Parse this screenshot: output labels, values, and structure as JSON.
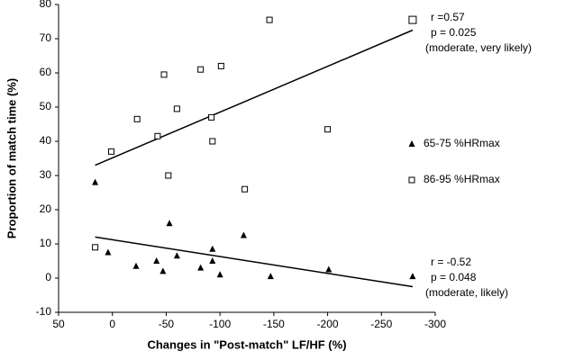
{
  "chart_data": {
    "type": "scatter",
    "xlabel": "Changes in \"Post-match\" LF/HF (%)",
    "ylabel": "Proportion of match time (%)",
    "xlim": [
      50,
      -300
    ],
    "xticks": [
      50,
      0,
      -50,
      -100,
      -150,
      -200,
      -250,
      -300
    ],
    "ylim": [
      -10,
      80
    ],
    "yticks": [
      -10,
      0,
      10,
      20,
      30,
      40,
      50,
      60,
      70,
      80
    ],
    "series": [
      {
        "name": "65-75  %HRmax",
        "marker": "triangle",
        "color": "#000000",
        "x": [
          16,
          4,
          -22,
          -41,
          -47,
          -53,
          -60,
          -82,
          -93,
          -93,
          -100,
          -122,
          -147,
          -201,
          -279
        ],
        "values": [
          28,
          7.5,
          3.5,
          5,
          2,
          16,
          6.5,
          3,
          8.5,
          5,
          1,
          12.5,
          0.5,
          2.5,
          0.5
        ],
        "trend_x": [
          16,
          -279
        ],
        "trend_y": [
          12,
          -2.5
        ],
        "annotation": [
          "r = -0.52",
          "p = 0.048",
          "(moderate, likely)"
        ]
      },
      {
        "name": "86-95  %HRmax",
        "marker": "square",
        "color": "#000000",
        "x": [
          16,
          1,
          -23,
          -42,
          -48,
          -52,
          -60,
          -82,
          -92,
          -93,
          -101,
          -123,
          -146,
          -200,
          -279
        ],
        "values": [
          9,
          37,
          46.5,
          41.5,
          59.5,
          30,
          49.5,
          61,
          47,
          40,
          62,
          26,
          75.5,
          43.5,
          75.5
        ],
        "trend_x": [
          16,
          -279
        ],
        "trend_y": [
          33,
          72.5
        ],
        "annotation": [
          "r =0.57",
          "p = 0.025",
          "(moderate, very likely)"
        ]
      }
    ]
  }
}
